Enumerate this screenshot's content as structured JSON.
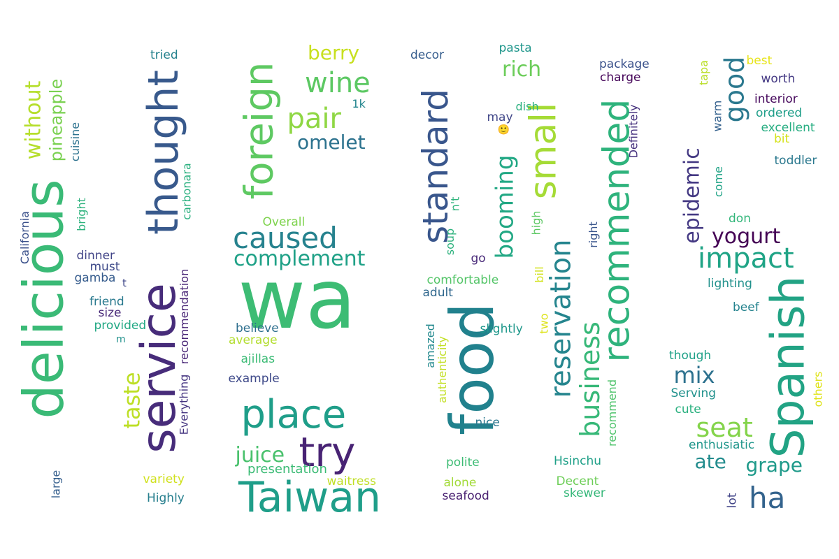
{
  "words": [
    {
      "text": "wa",
      "color": "#3dbc74"
    },
    {
      "text": "food",
      "color": "#21818d"
    },
    {
      "text": "service",
      "color": "#472c7a"
    },
    {
      "text": "delicious",
      "color": "#3aba76"
    },
    {
      "text": "Spanish",
      "color": "#22a384"
    },
    {
      "text": "Taiwan",
      "color": "#1f9e89"
    },
    {
      "text": "recommended",
      "color": "#2eb37c"
    },
    {
      "text": "place",
      "color": "#1f9e89"
    },
    {
      "text": "standard",
      "color": "#39568c"
    },
    {
      "text": "thought",
      "color": "#38598c"
    },
    {
      "text": "foreign",
      "color": "#5ec962"
    },
    {
      "text": "small",
      "color": "#a5db36"
    },
    {
      "text": "try",
      "color": "#482374"
    },
    {
      "text": "reservation",
      "color": "#25858e"
    },
    {
      "text": "business",
      "color": "#37b878"
    },
    {
      "text": "impact",
      "color": "#20a486"
    },
    {
      "text": "caused",
      "color": "#26828e"
    },
    {
      "text": "good",
      "color": "#2a788e"
    },
    {
      "text": "wine",
      "color": "#5cc863"
    },
    {
      "text": "pair",
      "color": "#8fd744"
    },
    {
      "text": "booming",
      "color": "#22a884"
    },
    {
      "text": "epidemic",
      "color": "#443983"
    },
    {
      "text": "seat",
      "color": "#84d44b"
    },
    {
      "text": "ha",
      "color": "#33638d"
    },
    {
      "text": "taste",
      "color": "#bddf26"
    },
    {
      "text": "without",
      "color": "#b5de2b"
    },
    {
      "text": "complement",
      "color": "#1fa187"
    },
    {
      "text": "juice",
      "color": "#4ac16d"
    },
    {
      "text": "omelet",
      "color": "#2c728e"
    },
    {
      "text": "yogurt",
      "color": "#440154"
    },
    {
      "text": "mix",
      "color": "#2d718e"
    },
    {
      "text": "grape",
      "color": "#1f9a8a"
    },
    {
      "text": "ate",
      "color": "#228c8d"
    },
    {
      "text": "pineapple",
      "color": "#7ad151"
    },
    {
      "text": "rich",
      "color": "#6ccd5a"
    },
    {
      "text": "berry",
      "color": "#c8e020"
    },
    {
      "text": "California",
      "color": "#3b518b"
    },
    {
      "text": "presentation",
      "color": "#3bbb75"
    },
    {
      "text": "cuisine",
      "color": "#2c728e"
    },
    {
      "text": "carbonara",
      "color": "#2ab07f"
    },
    {
      "text": "Everything",
      "color": "#453581"
    },
    {
      "text": "recommendation",
      "color": "#482576"
    },
    {
      "text": "bright",
      "color": "#2db27d"
    },
    {
      "text": "tried",
      "color": "#26828e"
    },
    {
      "text": "dinner",
      "color": "#414487"
    },
    {
      "text": "must",
      "color": "#3e4a89"
    },
    {
      "text": "gamba",
      "color": "#365c8d"
    },
    {
      "text": "t",
      "color": "#3f4788"
    },
    {
      "text": "friend",
      "color": "#29798e"
    },
    {
      "text": "size",
      "color": "#482878"
    },
    {
      "text": "provided",
      "color": "#22a884"
    },
    {
      "text": "m",
      "color": "#21918c"
    },
    {
      "text": "large",
      "color": "#355f8d"
    },
    {
      "text": "variety",
      "color": "#d0e11c"
    },
    {
      "text": "Highly",
      "color": "#277f8e"
    },
    {
      "text": "Overall",
      "color": "#7fd34e"
    },
    {
      "text": "believe",
      "color": "#2e6f8e"
    },
    {
      "text": "average",
      "color": "#b2dd2d"
    },
    {
      "text": "ajillas",
      "color": "#3bbb75"
    },
    {
      "text": "example",
      "color": "#3e4989"
    },
    {
      "text": "waitress",
      "color": "#c0df25"
    },
    {
      "text": "1k",
      "color": "#24868e"
    },
    {
      "text": "decor",
      "color": "#365d8d"
    },
    {
      "text": "pasta",
      "color": "#1f968b"
    },
    {
      "text": "dish",
      "color": "#2bb07f"
    },
    {
      "text": "may",
      "color": "#404688"
    },
    {
      "text": "n't",
      "color": "#2fb47c"
    },
    {
      "text": "soup",
      "color": "#2db27d"
    },
    {
      "text": "go",
      "color": "#482979"
    },
    {
      "text": "high",
      "color": "#5cc863"
    },
    {
      "text": "bill",
      "color": "#d2e21b"
    },
    {
      "text": "comfortable",
      "color": "#54c568"
    },
    {
      "text": "adult",
      "color": "#31688e"
    },
    {
      "text": "authenticity",
      "color": "#c2df23"
    },
    {
      "text": "amazed",
      "color": "#23898e"
    },
    {
      "text": "slightly",
      "color": "#1f988b"
    },
    {
      "text": "two",
      "color": "#dde318"
    },
    {
      "text": "nice",
      "color": "#2a768e"
    },
    {
      "text": "polite",
      "color": "#3dbc74"
    },
    {
      "text": "alone",
      "color": "#a2da37"
    },
    {
      "text": "seafood",
      "color": "#481f70"
    },
    {
      "text": "Hsinchu",
      "color": "#1fa088"
    },
    {
      "text": "Decent",
      "color": "#6ece58"
    },
    {
      "text": "skewer",
      "color": "#35b779"
    },
    {
      "text": "recommend",
      "color": "#4ec36b"
    },
    {
      "text": "right",
      "color": "#39558c"
    },
    {
      "text": "package",
      "color": "#3b528b"
    },
    {
      "text": "charge",
      "color": "#450559"
    },
    {
      "text": "Definitely",
      "color": "#46327e"
    },
    {
      "text": "tapa",
      "color": "#bade28"
    },
    {
      "text": "best",
      "color": "#e7e419"
    },
    {
      "text": "worth",
      "color": "#443983"
    },
    {
      "text": "interior",
      "color": "#46085c"
    },
    {
      "text": "ordered",
      "color": "#1f9e89"
    },
    {
      "text": "excellent",
      "color": "#26ad81"
    },
    {
      "text": "warm",
      "color": "#34618d"
    },
    {
      "text": "bit",
      "color": "#d5e21a"
    },
    {
      "text": "toddler",
      "color": "#2a788e"
    },
    {
      "text": "come",
      "color": "#20a386"
    },
    {
      "text": "don",
      "color": "#32b67a"
    },
    {
      "text": "lighting",
      "color": "#21918c"
    },
    {
      "text": "beef",
      "color": "#25838e"
    },
    {
      "text": "though",
      "color": "#1fa188"
    },
    {
      "text": "Serving",
      "color": "#21918c"
    },
    {
      "text": "cute",
      "color": "#2ab07f"
    },
    {
      "text": "enthusiatic",
      "color": "#1f968b"
    },
    {
      "text": "lot",
      "color": "#414487"
    },
    {
      "text": "others",
      "color": "#dfe318"
    },
    {
      "text": "🙂",
      "color": "#3e4a89"
    }
  ]
}
